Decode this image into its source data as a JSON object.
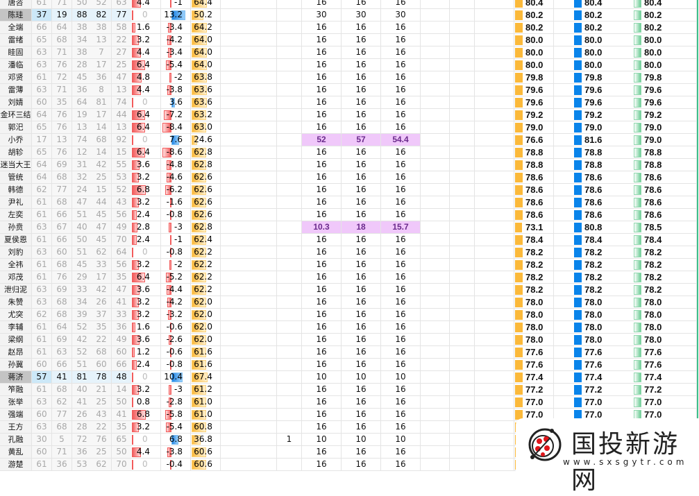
{
  "colors": {
    "neg_bar": "#f25c5c",
    "pos_bar": "#1f86e6",
    "score_bar": "#fbb93a",
    "col1_bar": "#fbb93a",
    "col2_bar": "#0a84ea",
    "col3_bar": "#6ccc94",
    "highlight": "#f0c8fa",
    "row_highlight": "#e6f3fb"
  },
  "rows": [
    {
      "n": "唐咨",
      "s": [
        61,
        71,
        50,
        52,
        63
      ],
      "a": 4.4,
      "b": -1,
      "c": "64.4",
      "m": [
        "16",
        "16",
        "16"
      ],
      "r": [
        "80.4",
        "80.4",
        "80.4"
      ]
    },
    {
      "n": "陈珪",
      "s": [
        37,
        19,
        88,
        82,
        77
      ],
      "a": 0,
      "b": 13.2,
      "c": "50.2",
      "m": [
        "30",
        "30",
        "30"
      ],
      "r": [
        "80.2",
        "80.2",
        "80.2"
      ],
      "hl": true
    },
    {
      "n": "全端",
      "s": [
        66,
        64,
        38,
        38,
        58
      ],
      "a": 1.6,
      "b": -3.4,
      "c": "64.2",
      "m": [
        "16",
        "16",
        "16"
      ],
      "r": [
        "80.2",
        "80.2",
        "80.2"
      ]
    },
    {
      "n": "雷绪",
      "s": [
        65,
        68,
        34,
        13,
        22
      ],
      "a": 3.2,
      "b": -4.2,
      "c": "64.0",
      "m": [
        "16",
        "16",
        "16"
      ],
      "r": [
        "80.0",
        "80.0",
        "80.0"
      ]
    },
    {
      "n": "眭固",
      "s": [
        63,
        71,
        38,
        7,
        27
      ],
      "a": 4.4,
      "b": -3.4,
      "c": "64.0",
      "m": [
        "16",
        "16",
        "16"
      ],
      "r": [
        "80.0",
        "80.0",
        "80.0"
      ]
    },
    {
      "n": "潘临",
      "s": [
        63,
        76,
        28,
        17,
        25
      ],
      "a": 6.4,
      "b": -5.4,
      "c": "64.0",
      "m": [
        "16",
        "16",
        "16"
      ],
      "r": [
        "80.0",
        "80.0",
        "80.0"
      ]
    },
    {
      "n": "邓贤",
      "s": [
        61,
        72,
        45,
        36,
        47
      ],
      "a": 4.8,
      "b": -2,
      "c": "63.8",
      "m": [
        "16",
        "16",
        "16"
      ],
      "r": [
        "79.8",
        "79.8",
        "79.8"
      ]
    },
    {
      "n": "雷薄",
      "s": [
        63,
        71,
        36,
        8,
        13
      ],
      "a": 4.4,
      "b": -3.8,
      "c": "63.6",
      "m": [
        "16",
        "16",
        "16"
      ],
      "r": [
        "79.6",
        "79.6",
        "79.6"
      ]
    },
    {
      "n": "刘婧",
      "s": [
        60,
        35,
        64,
        81,
        74
      ],
      "a": 0,
      "b": 3.6,
      "c": "63.6",
      "m": [
        "16",
        "16",
        "16"
      ],
      "r": [
        "79.6",
        "79.6",
        "79.6"
      ]
    },
    {
      "n": "金环三结",
      "s": [
        64,
        76,
        19,
        17,
        44
      ],
      "a": 6.4,
      "b": -7.2,
      "c": "63.2",
      "m": [
        "16",
        "16",
        "16"
      ],
      "r": [
        "79.2",
        "79.2",
        "79.2"
      ]
    },
    {
      "n": "郭汜",
      "s": [
        65,
        76,
        13,
        14,
        13
      ],
      "a": 6.4,
      "b": -8.4,
      "c": "63.0",
      "m": [
        "16",
        "16",
        "16"
      ],
      "r": [
        "79.0",
        "79.0",
        "79.0"
      ]
    },
    {
      "n": "小乔",
      "s": [
        17,
        13,
        74,
        68,
        92
      ],
      "a": 0,
      "b": 7.6,
      "c": "24.6",
      "m": [
        "52",
        "57",
        "54.4"
      ],
      "mp": true,
      "r": [
        "76.6",
        "81.6",
        "79.0"
      ]
    },
    {
      "n": "胡轸",
      "s": [
        65,
        76,
        12,
        14,
        15
      ],
      "a": 6.4,
      "b": -8.6,
      "c": "62.8",
      "m": [
        "16",
        "16",
        "16"
      ],
      "r": [
        "78.8",
        "78.8",
        "78.8"
      ]
    },
    {
      "n": "迷当大王",
      "s": [
        64,
        69,
        31,
        42,
        55
      ],
      "a": 3.6,
      "b": -4.8,
      "c": "62.8",
      "m": [
        "16",
        "16",
        "16"
      ],
      "r": [
        "78.8",
        "78.8",
        "78.8"
      ]
    },
    {
      "n": "管统",
      "s": [
        64,
        68,
        32,
        25,
        53
      ],
      "a": 3.2,
      "b": -4.6,
      "c": "62.6",
      "m": [
        "16",
        "16",
        "16"
      ],
      "r": [
        "78.6",
        "78.6",
        "78.6"
      ]
    },
    {
      "n": "韩德",
      "s": [
        62,
        77,
        24,
        15,
        52
      ],
      "a": 6.8,
      "b": -6.2,
      "c": "62.6",
      "m": [
        "16",
        "16",
        "16"
      ],
      "r": [
        "78.6",
        "78.6",
        "78.6"
      ]
    },
    {
      "n": "尹礼",
      "s": [
        61,
        68,
        47,
        44,
        43
      ],
      "a": 3.2,
      "b": -1.6,
      "c": "62.6",
      "m": [
        "16",
        "16",
        "16"
      ],
      "r": [
        "78.6",
        "78.6",
        "78.6"
      ]
    },
    {
      "n": "左奕",
      "s": [
        61,
        66,
        51,
        45,
        56
      ],
      "a": 2.4,
      "b": -0.8,
      "c": "62.6",
      "m": [
        "16",
        "16",
        "16"
      ],
      "r": [
        "78.6",
        "78.6",
        "78.6"
      ]
    },
    {
      "n": "孙贲",
      "s": [
        63,
        67,
        40,
        47,
        49
      ],
      "a": 2.8,
      "b": -3,
      "c": "62.8",
      "m": [
        "10.3",
        "18",
        "15.7"
      ],
      "mp": true,
      "r": [
        "73.1",
        "80.8",
        "78.5"
      ]
    },
    {
      "n": "夏侯恩",
      "s": [
        61,
        66,
        50,
        45,
        70
      ],
      "a": 2.4,
      "b": -1,
      "c": "62.4",
      "m": [
        "16",
        "16",
        "16"
      ],
      "r": [
        "78.4",
        "78.4",
        "78.4"
      ]
    },
    {
      "n": "刘豹",
      "s": [
        63,
        60,
        51,
        62,
        64
      ],
      "a": 0,
      "b": -0.8,
      "c": "62.2",
      "m": [
        "16",
        "16",
        "16"
      ],
      "r": [
        "78.2",
        "78.2",
        "78.2"
      ]
    },
    {
      "n": "全祎",
      "s": [
        61,
        68,
        45,
        33,
        56
      ],
      "a": 3.2,
      "b": -2,
      "c": "62.2",
      "m": [
        "16",
        "16",
        "16"
      ],
      "r": [
        "78.2",
        "78.2",
        "78.2"
      ]
    },
    {
      "n": "邓茂",
      "s": [
        61,
        76,
        29,
        17,
        35
      ],
      "a": 6.4,
      "b": -5.2,
      "c": "62.2",
      "m": [
        "16",
        "16",
        "16"
      ],
      "r": [
        "78.2",
        "78.2",
        "78.2"
      ]
    },
    {
      "n": "泄归泥",
      "s": [
        63,
        69,
        33,
        42,
        47
      ],
      "a": 3.6,
      "b": -4.4,
      "c": "62.2",
      "m": [
        "16",
        "16",
        "16"
      ],
      "r": [
        "78.2",
        "78.2",
        "78.2"
      ]
    },
    {
      "n": "朱赞",
      "s": [
        63,
        68,
        34,
        26,
        41
      ],
      "a": 3.2,
      "b": -4.2,
      "c": "62.0",
      "m": [
        "16",
        "16",
        "16"
      ],
      "r": [
        "78.0",
        "78.0",
        "78.0"
      ]
    },
    {
      "n": "尤突",
      "s": [
        62,
        68,
        39,
        37,
        33
      ],
      "a": 3.2,
      "b": -3.2,
      "c": "62.0",
      "m": [
        "16",
        "16",
        "16"
      ],
      "r": [
        "78.0",
        "78.0",
        "78.0"
      ]
    },
    {
      "n": "李辅",
      "s": [
        61,
        64,
        52,
        35,
        36
      ],
      "a": 1.6,
      "b": -0.6,
      "c": "62.0",
      "m": [
        "16",
        "16",
        "16"
      ],
      "r": [
        "78.0",
        "78.0",
        "78.0"
      ]
    },
    {
      "n": "梁纲",
      "s": [
        61,
        69,
        42,
        22,
        49
      ],
      "a": 3.6,
      "b": -2.6,
      "c": "62.0",
      "m": [
        "16",
        "16",
        "16"
      ],
      "r": [
        "78.0",
        "78.0",
        "78.0"
      ]
    },
    {
      "n": "赵昂",
      "s": [
        61,
        63,
        52,
        68,
        60
      ],
      "a": 1.2,
      "b": -0.6,
      "c": "61.6",
      "m": [
        "16",
        "16",
        "16"
      ],
      "r": [
        "77.6",
        "77.6",
        "77.6"
      ]
    },
    {
      "n": "孙冀",
      "s": [
        60,
        66,
        51,
        60,
        66
      ],
      "a": 2.4,
      "b": -0.8,
      "c": "61.6",
      "m": [
        "16",
        "16",
        "16"
      ],
      "r": [
        "77.6",
        "77.6",
        "77.6"
      ]
    },
    {
      "n": "蒋济",
      "s": [
        57,
        41,
        81,
        78,
        48
      ],
      "a": 0,
      "b": 10.4,
      "c": "67.4",
      "m": [
        "10",
        "10",
        "10"
      ],
      "r": [
        "77.4",
        "77.4",
        "77.4"
      ],
      "hl": true
    },
    {
      "n": "笮融",
      "s": [
        61,
        68,
        40,
        21,
        14
      ],
      "a": 3.2,
      "b": -3,
      "c": "61.2",
      "m": [
        "16",
        "16",
        "16"
      ],
      "r": [
        "77.2",
        "77.2",
        "77.2"
      ]
    },
    {
      "n": "张举",
      "s": [
        63,
        62,
        41,
        25,
        50
      ],
      "a": 0.8,
      "b": -2.8,
      "c": "61.0",
      "m": [
        "16",
        "16",
        "16"
      ],
      "r": [
        "77.0",
        "77.0",
        "77.0"
      ]
    },
    {
      "n": "强端",
      "s": [
        60,
        77,
        26,
        43,
        41
      ],
      "a": 6.8,
      "b": -5.8,
      "c": "61.0",
      "m": [
        "16",
        "16",
        "16"
      ],
      "r": [
        "77.0",
        "77.0",
        "77.0"
      ]
    },
    {
      "n": "王方",
      "s": [
        63,
        68,
        28,
        22,
        35
      ],
      "a": 3.2,
      "b": -5.4,
      "c": "60.8",
      "m": [
        "16",
        "16",
        "16"
      ],
      "r": [
        "",
        "",
        ""
      ]
    },
    {
      "n": "孔融",
      "s": [
        30,
        5,
        72,
        76,
        65
      ],
      "a": 0,
      "b": 6.8,
      "c": "36.8",
      "x": "1",
      "m": [
        "10",
        "10",
        "10"
      ],
      "r": [
        "",
        "",
        ""
      ]
    },
    {
      "n": "黄乱",
      "s": [
        60,
        71,
        36,
        25,
        50
      ],
      "a": 4.4,
      "b": -3.8,
      "c": "60.6",
      "m": [
        "16",
        "16",
        "16"
      ],
      "r": [
        "",
        "",
        ""
      ]
    },
    {
      "n": "游楚",
      "s": [
        61,
        36,
        53,
        62,
        70
      ],
      "a": 0,
      "b": -0.4,
      "c": "60.6",
      "m": [
        "16",
        "16",
        "16"
      ],
      "r": [
        "",
        "",
        ""
      ]
    }
  ],
  "watermark": {
    "title": "国投新游网",
    "url": "www.sxsgytr.com"
  }
}
